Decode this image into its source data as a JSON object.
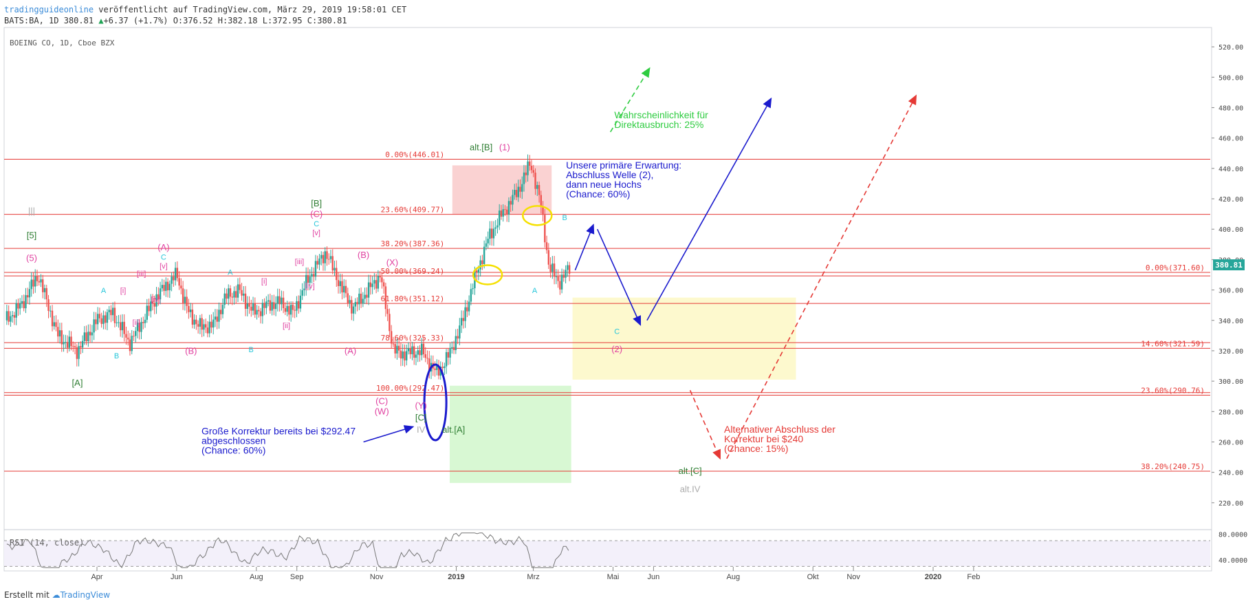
{
  "header": {
    "author": "tradingguideonline",
    "published": "veröffentlicht auf TradingView.com, März 29, 2019 19:58:01 CET",
    "symbol": "BATS:BA, 1D",
    "last": "380.81",
    "change": "+6.37 (+1.7%)",
    "ohlc": "O:376.52 H:382.18 L:372.95 C:380.81"
  },
  "chart_title": "BOEING CO, 1D, Cboe BZX",
  "price_tag": "380.81",
  "rsi_label": "RSI (14, close)",
  "footer": {
    "prefix": "Erstellt mit",
    "brand": "TradingView"
  },
  "colors": {
    "up": "#26a69a",
    "down": "#ef5350",
    "fib": "#e53935",
    "blue": "#1a1acd",
    "green": "#2ecc40",
    "redDash": "#e53935",
    "greenLabel": "#2e7d32",
    "pink": "#e040a0",
    "cyan": "#26c6da",
    "gray": "#aaaaaa"
  },
  "chart_data": {
    "type": "candlestick",
    "symbol": "BOEING CO",
    "ylim": [
      205,
      530
    ],
    "y_ticks": [
      "520.00",
      "500.00",
      "480.00",
      "460.00",
      "440.00",
      "420.00",
      "400.00",
      "380.00",
      "360.00",
      "340.00",
      "320.00",
      "300.00",
      "280.00",
      "260.00",
      "240.00",
      "220.00"
    ],
    "y_tick_values": [
      520,
      500,
      480,
      460,
      440,
      420,
      400,
      380,
      360,
      340,
      320,
      300,
      280,
      260,
      240,
      220
    ],
    "x_ticks": [
      {
        "label": "Apr",
        "d": 70
      },
      {
        "label": "Jun",
        "d": 131
      },
      {
        "label": "Aug",
        "d": 192
      },
      {
        "label": "Sep",
        "d": 223
      },
      {
        "label": "Nov",
        "d": 284
      },
      {
        "label": "2019",
        "d": 345
      },
      {
        "label": "Mrz",
        "d": 404
      },
      {
        "label": "Mai",
        "d": 465
      },
      {
        "label": "Jun",
        "d": 496
      },
      {
        "label": "Aug",
        "d": 557
      },
      {
        "label": "Okt",
        "d": 618
      },
      {
        "label": "Nov",
        "d": 649
      },
      {
        "label": "2020",
        "d": 710
      },
      {
        "label": "Feb",
        "d": 741
      }
    ],
    "x_range_days": [
      0,
      790
    ],
    "close_path": [
      [
        0,
        340
      ],
      [
        12,
        350
      ],
      [
        25,
        370
      ],
      [
        40,
        330
      ],
      [
        55,
        320
      ],
      [
        70,
        340
      ],
      [
        82,
        345
      ],
      [
        95,
        325
      ],
      [
        105,
        340
      ],
      [
        115,
        355
      ],
      [
        125,
        365
      ],
      [
        131,
        370
      ],
      [
        140,
        345
      ],
      [
        150,
        335
      ],
      [
        160,
        338
      ],
      [
        168,
        355
      ],
      [
        178,
        360
      ],
      [
        190,
        345
      ],
      [
        200,
        350
      ],
      [
        210,
        352
      ],
      [
        220,
        345
      ],
      [
        232,
        368
      ],
      [
        245,
        385
      ],
      [
        258,
        360
      ],
      [
        266,
        348
      ],
      [
        276,
        358
      ],
      [
        287,
        370
      ],
      [
        297,
        320
      ],
      [
        305,
        318
      ],
      [
        318,
        320
      ],
      [
        330,
        305
      ],
      [
        340,
        318
      ],
      [
        350,
        340
      ],
      [
        360,
        370
      ],
      [
        370,
        395
      ],
      [
        380,
        410
      ],
      [
        392,
        425
      ],
      [
        402,
        444
      ],
      [
        410,
        415
      ],
      [
        416,
        375
      ],
      [
        424,
        365
      ],
      [
        432,
        375
      ]
    ],
    "fib_levels": [
      {
        "label": "0.00%(446.01)",
        "price": 446.01,
        "side": "left"
      },
      {
        "label": "23.60%(409.77)",
        "price": 409.77,
        "side": "left"
      },
      {
        "label": "38.20%(387.36)",
        "price": 387.36,
        "side": "left"
      },
      {
        "label": "50.00%(369.24)",
        "price": 369.24,
        "side": "left"
      },
      {
        "label": "61.80%(351.12)",
        "price": 351.12,
        "side": "left"
      },
      {
        "label": "78.60%(325.33)",
        "price": 325.33,
        "side": "left"
      },
      {
        "label": "100.00%(292.47)",
        "price": 292.47,
        "side": "left"
      },
      {
        "label": "0.00%(371.60)",
        "price": 371.6,
        "side": "right"
      },
      {
        "label": "14.60%(321.59)",
        "price": 321.59,
        "side": "right"
      },
      {
        "label": "23.60%(290.76)",
        "price": 290.76,
        "side": "right"
      },
      {
        "label": "38.20%(240.75)",
        "price": 240.75,
        "side": "right"
      }
    ],
    "wave_labels": [
      {
        "t": "|||",
        "d": 20,
        "p": 410,
        "c": "gray"
      },
      {
        "t": "[5]",
        "d": 20,
        "p": 394,
        "c": "greenLabel"
      },
      {
        "t": "(5)",
        "d": 20,
        "p": 379,
        "c": "pink"
      },
      {
        "t": "A",
        "d": 75,
        "p": 358,
        "c": "cyan"
      },
      {
        "t": "[i]",
        "d": 90,
        "p": 358,
        "c": "pink"
      },
      {
        "t": "[ii]",
        "d": 100,
        "p": 337,
        "c": "pink"
      },
      {
        "t": "B",
        "d": 85,
        "p": 315,
        "c": "cyan"
      },
      {
        "t": "[A]",
        "d": 55,
        "p": 297,
        "c": "greenLabel"
      },
      {
        "t": "[iii]",
        "d": 104,
        "p": 369,
        "c": "pink"
      },
      {
        "t": "[iv]",
        "d": 115,
        "p": 352,
        "c": "pink"
      },
      {
        "t": "(A)",
        "d": 121,
        "p": 386,
        "c": "pink"
      },
      {
        "t": "C",
        "d": 121,
        "p": 380,
        "c": "cyan"
      },
      {
        "t": "[v]",
        "d": 121,
        "p": 374,
        "c": "pink"
      },
      {
        "t": "(B)",
        "d": 142,
        "p": 318,
        "c": "pink"
      },
      {
        "t": "A",
        "d": 172,
        "p": 370,
        "c": "cyan"
      },
      {
        "t": "[i]",
        "d": 198,
        "p": 364,
        "c": "pink"
      },
      {
        "t": "[ii]",
        "d": 215,
        "p": 335,
        "c": "pink"
      },
      {
        "t": "B",
        "d": 188,
        "p": 319,
        "c": "cyan"
      },
      {
        "t": "[iii]",
        "d": 225,
        "p": 377,
        "c": "pink"
      },
      {
        "t": "[iv]",
        "d": 233,
        "p": 361,
        "c": "pink"
      },
      {
        "t": "[B]",
        "d": 238,
        "p": 415,
        "c": "greenLabel"
      },
      {
        "t": "(C)",
        "d": 238,
        "p": 408,
        "c": "pink"
      },
      {
        "t": "C",
        "d": 238,
        "p": 402,
        "c": "cyan"
      },
      {
        "t": "[v]",
        "d": 238,
        "p": 396,
        "c": "pink"
      },
      {
        "t": "(B)",
        "d": 274,
        "p": 381,
        "c": "pink"
      },
      {
        "t": "(X)",
        "d": 296,
        "p": 376,
        "c": "pink"
      },
      {
        "t": "(A)",
        "d": 264,
        "p": 318,
        "c": "pink"
      },
      {
        "t": "(C)",
        "d": 288,
        "p": 285,
        "c": "pink"
      },
      {
        "t": "(W)",
        "d": 288,
        "p": 278,
        "c": "pink"
      },
      {
        "t": "(Y)",
        "d": 318,
        "p": 282,
        "c": "pink"
      },
      {
        "t": "[C]",
        "d": 318,
        "p": 274,
        "c": "greenLabel"
      },
      {
        "t": "IV",
        "d": 318,
        "p": 266,
        "c": "gray"
      },
      {
        "t": "alt.[A]",
        "d": 343,
        "p": 266,
        "c": "greenLabel"
      },
      {
        "t": "alt.[B]",
        "d": 364,
        "p": 452,
        "c": "greenLabel"
      },
      {
        "t": "(1)",
        "d": 382,
        "p": 452,
        "c": "pink"
      },
      {
        "t": "B",
        "d": 428,
        "p": 406,
        "c": "cyan"
      },
      {
        "t": "A",
        "d": 405,
        "p": 358,
        "c": "cyan"
      },
      {
        "t": "C",
        "d": 468,
        "p": 331,
        "c": "cyan"
      },
      {
        "t": "(2)",
        "d": 468,
        "p": 319,
        "c": "pink"
      },
      {
        "t": "alt.[C]",
        "d": 524,
        "p": 239,
        "c": "greenLabel"
      },
      {
        "t": "alt.IV",
        "d": 524,
        "p": 227,
        "c": "gray"
      }
    ],
    "annotations": [
      {
        "lines": [
          "Wahrscheinlichkeit für",
          "Direktausbruch: 25%"
        ],
        "d": 466,
        "p": 473,
        "c": "green"
      },
      {
        "lines": [
          "Unsere primäre Erwartung:",
          "Abschluss Welle (2),",
          "dann neue Hochs",
          "(Chance: 60%)"
        ],
        "d": 429,
        "p": 440,
        "c": "blue"
      },
      {
        "lines": [
          "Große Korrektur bereits bei $292.47",
          "abgeschlossen",
          "(Chance: 60%)"
        ],
        "d": 150,
        "p": 265,
        "c": "blue"
      },
      {
        "lines": [
          "Alternativer Abschluss der",
          "Korrektur bei $240",
          "(Chance: 15%)"
        ],
        "d": 550,
        "p": 266,
        "c": "redDash"
      }
    ],
    "rsi": {
      "label": "RSI (14, close)",
      "ticks": [
        "80.0000",
        "40.0000"
      ],
      "tick_values": [
        80,
        40
      ],
      "ylim": [
        25,
        85
      ]
    }
  }
}
